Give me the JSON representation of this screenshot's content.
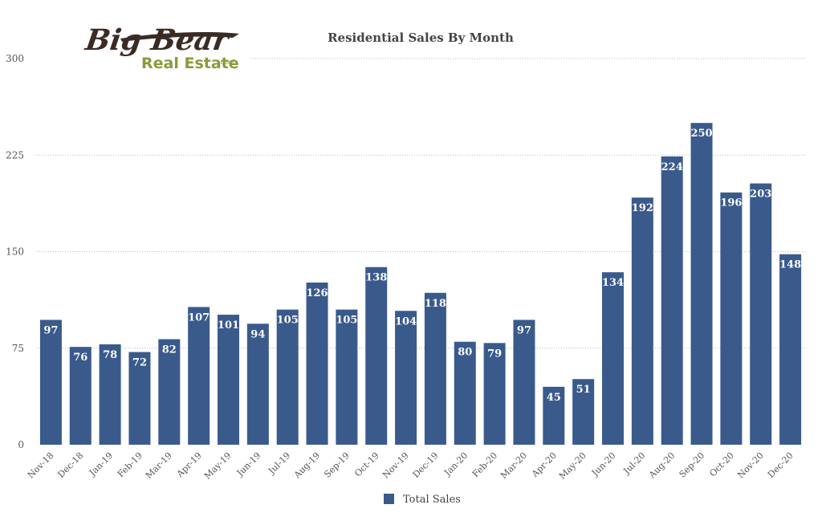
{
  "logo": {
    "line1": "Big Bear",
    "line2": "Real Estate",
    "suffix": ".com"
  },
  "colors": {
    "bar": "#3a5a8c",
    "grid": "#b8b8b8",
    "text": "#444444",
    "logo_dark": "#3a2c24",
    "logo_green": "#8a9a3a"
  },
  "chart_data": {
    "type": "bar",
    "title": "Residential Sales By Month",
    "xlabel": "",
    "ylabel": "",
    "ylim": [
      0,
      300
    ],
    "yticks": [
      0,
      75,
      150,
      225,
      300
    ],
    "grid": true,
    "legend_position": "bottom-center",
    "categories": [
      "Nov-18",
      "Dec-18",
      "Jan-19",
      "Feb-19",
      "Mar-19",
      "Apr-19",
      "May-19",
      "Jun-19",
      "Jul-19",
      "Aug-19",
      "Sep-19",
      "Oct-19",
      "Nov-19",
      "Dec-19",
      "Jan-20",
      "Feb-20",
      "Mar-20",
      "Apr-20",
      "May-20",
      "Jun-20",
      "Jul-20",
      "Aug-20",
      "Sep-20",
      "Oct-20",
      "Nov-20",
      "Dec-20"
    ],
    "series": [
      {
        "name": "Total Sales",
        "color": "#3a5a8c",
        "values": [
          97,
          76,
          78,
          72,
          82,
          107,
          101,
          94,
          105,
          126,
          105,
          138,
          104,
          118,
          80,
          79,
          97,
          45,
          51,
          134,
          192,
          224,
          250,
          196,
          203,
          148
        ]
      }
    ]
  }
}
